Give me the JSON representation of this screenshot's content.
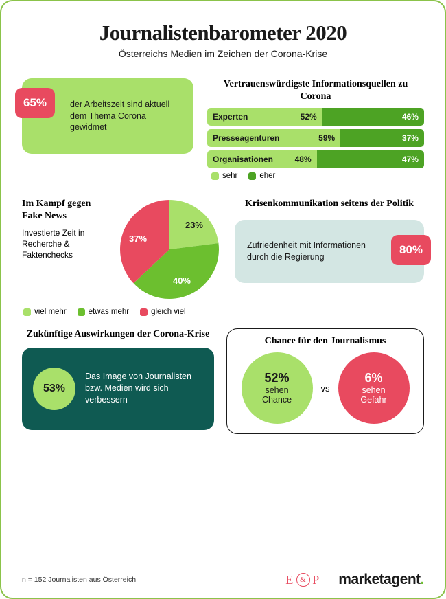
{
  "colors": {
    "light_green": "#a9e06a",
    "mid_green": "#6cbf2f",
    "dark_green_bar": "#4da324",
    "red": "#e84a5f",
    "teal_pale": "#d3e6e3",
    "teal_dark": "#0f5a52",
    "white": "#ffffff",
    "black": "#1a1a1a"
  },
  "header": {
    "title": "Journalistenbarometer 2020",
    "subtitle": "Österreichs Medien im Zeichen der Corona-Krise"
  },
  "worktime": {
    "percent": "65%",
    "text": "der Arbeitszeit sind aktuell dem Thema Corona gewidmet"
  },
  "sources": {
    "title": "Vertrauenswürdigste Informationsquellen zu Corona",
    "rows": [
      {
        "label": "Experten",
        "sehr": 52,
        "eher": 46
      },
      {
        "label": "Presseagenturen",
        "sehr": 59,
        "eher": 37
      },
      {
        "label": "Organisationen",
        "sehr": 48,
        "eher": 47
      }
    ],
    "legend": {
      "sehr": "sehr",
      "eher": "eher"
    }
  },
  "fakenews": {
    "title": "Im Kampf gegen Fake News",
    "subtitle": "Investierte Zeit in Recherche & Faktenchecks",
    "slices": {
      "viel_mehr": {
        "value": 23,
        "label": "23%",
        "color": "#a9e06a"
      },
      "etwas_mehr": {
        "value": 40,
        "label": "40%",
        "color": "#6cbf2f"
      },
      "gleich_viel": {
        "value": 37,
        "label": "37%",
        "color": "#e84a5f"
      }
    },
    "legend": {
      "viel_mehr": "viel mehr",
      "etwas_mehr": "etwas mehr",
      "gleich_viel": "gleich viel"
    }
  },
  "crisis": {
    "title": "Krisenkommunikation seitens der Politik",
    "text": "Zufriedenheit mit Informationen durch die Regierung",
    "percent": "80%"
  },
  "future": {
    "title": "Zukünftige Auswirkungen der Corona-Krise",
    "percent": "53%",
    "text": "Das Image von Journalisten bzw. Medien wird sich verbessern"
  },
  "chance": {
    "title": "Chance für den Journalismus",
    "left_pct": "52%",
    "left_line1": "sehen",
    "left_line2": "Chance",
    "vs": "vs",
    "right_pct": "6%",
    "right_line1": "sehen",
    "right_line2": "Gefahr"
  },
  "footer": {
    "note": "n = 152 Journalisten aus Österreich",
    "ep_e": "E",
    "ep_amp": "&",
    "ep_p": "P",
    "marketagent": "marketagent",
    "dot": "."
  }
}
